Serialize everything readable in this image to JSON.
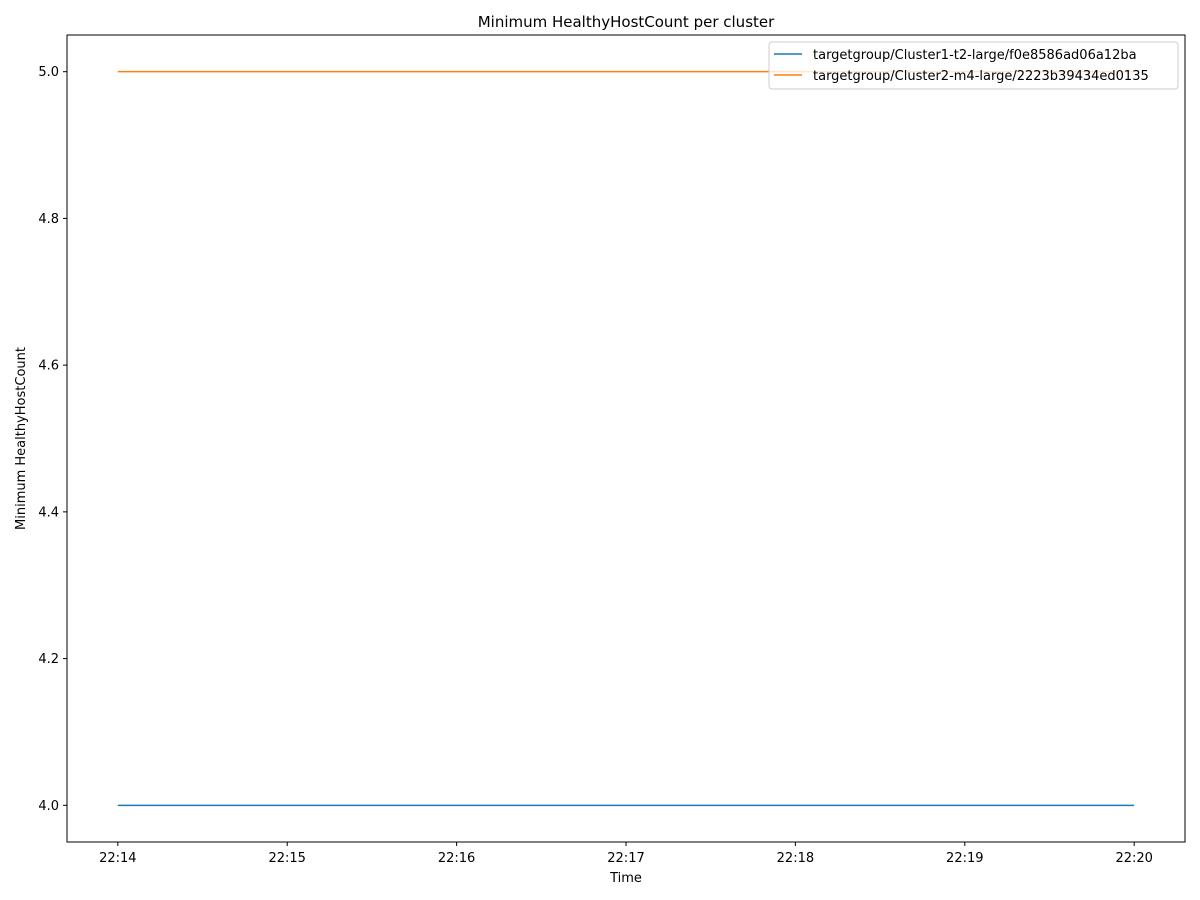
{
  "chart_data": {
    "type": "line",
    "title": "Minimum HealthyHostCount per cluster",
    "xlabel": "Time",
    "ylabel": "Minimum HealthyHostCount",
    "x": [
      "22:14",
      "22:15",
      "22:16",
      "22:17",
      "22:18",
      "22:19",
      "22:20"
    ],
    "xticks": [
      "22:14",
      "22:15",
      "22:16",
      "22:17",
      "22:18",
      "22:19",
      "22:20"
    ],
    "xlim": [
      "22:13:42",
      "22:20:18"
    ],
    "yticks": [
      "4.0",
      "4.2",
      "4.4",
      "4.6",
      "4.8",
      "5.0"
    ],
    "ylim": [
      3.95,
      5.05
    ],
    "grid": false,
    "legend_position": "top-right",
    "series": [
      {
        "name": "targetgroup/Cluster1-t2-large/f0e8586ad06a12ba",
        "color": "#1f77b4",
        "values": [
          4,
          4,
          4,
          4,
          4,
          4,
          4
        ]
      },
      {
        "name": "targetgroup/Cluster2-m4-large/2223b39434ed0135",
        "color": "#ff7f0e",
        "values": [
          5,
          5,
          5,
          5,
          5,
          5,
          5
        ]
      }
    ]
  }
}
